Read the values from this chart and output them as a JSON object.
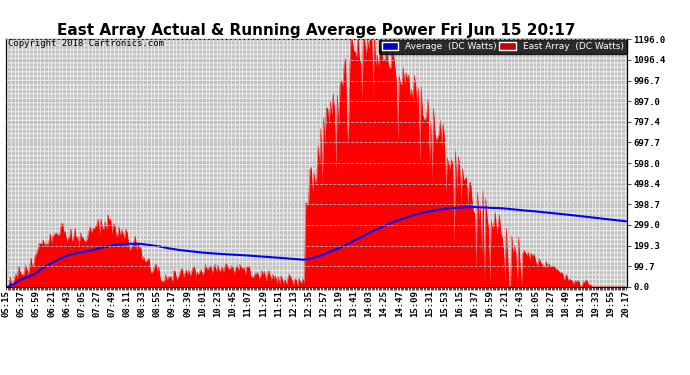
{
  "title": "East Array Actual & Running Average Power Fri Jun 15 20:17",
  "copyright": "Copyright 2018 Cartronics.com",
  "legend_average": "Average  (DC Watts)",
  "legend_east": "East Array  (DC Watts)",
  "ylabel_right_values": [
    1196.0,
    1096.4,
    996.7,
    897.0,
    797.4,
    697.7,
    598.0,
    498.4,
    398.7,
    299.0,
    199.3,
    99.7,
    0.0
  ],
  "ymax": 1196.0,
  "ymin": 0.0,
  "fill_color": "#FF0000",
  "avg_line_color": "#0000FF",
  "background_color": "#FFFFFF",
  "grid_color": "#BBBBBB",
  "title_fontsize": 11,
  "tick_label_fontsize": 6.5
}
